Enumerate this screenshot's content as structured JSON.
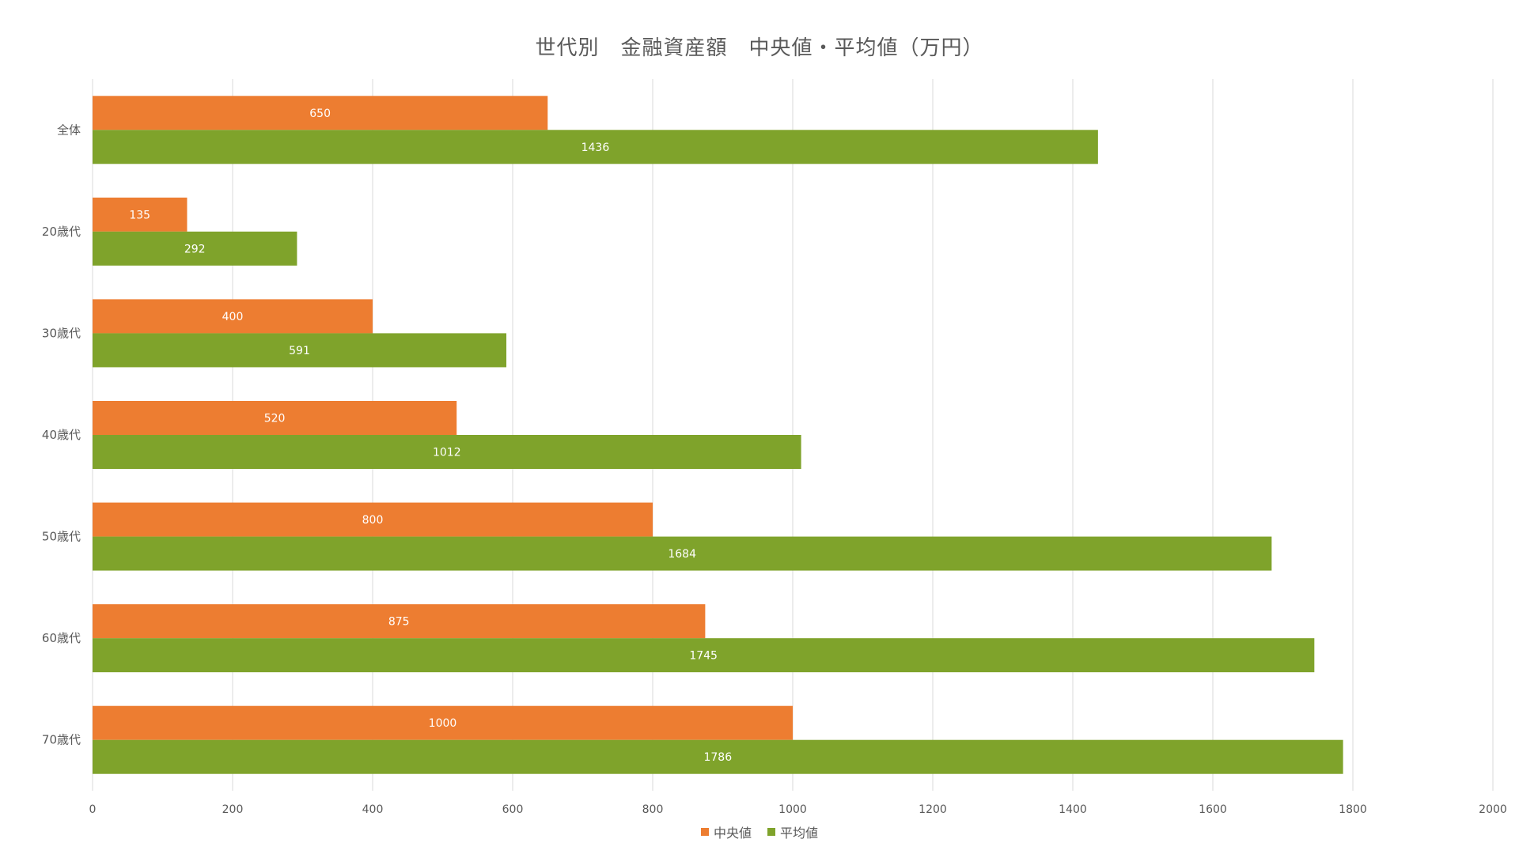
{
  "chart_data": {
    "type": "bar",
    "orientation": "horizontal",
    "title": "世代別　金融資産額　中央値・平均値（万円）",
    "categories": [
      "全体",
      "20歳代",
      "30歳代",
      "40歳代",
      "50歳代",
      "60歳代",
      "70歳代"
    ],
    "series": [
      {
        "name": "中央値",
        "color": "#ED7D31",
        "values": [
          650,
          135,
          400,
          520,
          800,
          875,
          1000
        ]
      },
      {
        "name": "平均値",
        "color": "#7FA32B",
        "values": [
          1436,
          292,
          591,
          1012,
          1684,
          1745,
          1786
        ]
      }
    ],
    "xlim": [
      0,
      2000
    ],
    "xticks": [
      0,
      200,
      400,
      600,
      800,
      1000,
      1200,
      1400,
      1600,
      1800,
      2000
    ],
    "grid": true,
    "legend_position": "bottom"
  }
}
